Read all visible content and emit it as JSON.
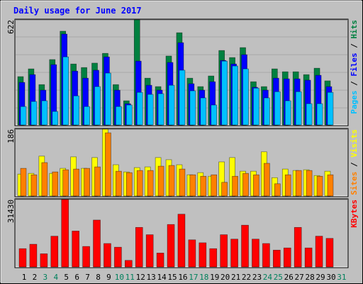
{
  "chart_data": [
    {
      "type": "bar",
      "title": "Daily usage for June 2017",
      "ylim": [
        0,
        622
      ],
      "yticks": [
        622
      ],
      "legend_separator": " / ",
      "series": [
        {
          "name": "Hits",
          "color": "#008040",
          "values": [
            286,
            332,
            239,
            387,
            555,
            361,
            340,
            366,
            424,
            239,
            143,
            622,
            277,
            227,
            408,
            546,
            277,
            227,
            290,
            441,
            399,
            458,
            256,
            227,
            332,
            315,
            315,
            298,
            336,
            261,
            0
          ]
        },
        {
          "name": "Files",
          "color": "#0000ff",
          "values": [
            252,
            298,
            206,
            357,
            538,
            319,
            277,
            324,
            403,
            206,
            126,
            378,
            235,
            206,
            370,
            487,
            244,
            206,
            256,
            382,
            361,
            416,
            223,
            206,
            277,
            273,
            273,
            265,
            294,
            227,
            0
          ]
        },
        {
          "name": "Pages",
          "color": "#00c0ff",
          "values": [
            109,
            139,
            143,
            80,
            403,
            172,
            109,
            227,
            307,
            109,
            118,
            193,
            181,
            185,
            235,
            324,
            202,
            160,
            118,
            378,
            349,
            332,
            218,
            160,
            197,
            143,
            197,
            126,
            126,
            193,
            0
          ]
        }
      ]
    },
    {
      "type": "bar",
      "ylim": [
        0,
        186
      ],
      "yticks": [
        186
      ],
      "legend_separator": " / ",
      "series": [
        {
          "name": "Visits",
          "color": "#ffff00",
          "values": [
            61,
            63,
            111,
            63,
            77,
            109,
            77,
            107,
            186,
            87,
            67,
            79,
            81,
            107,
            101,
            87,
            59,
            65,
            55,
            95,
            107,
            69,
            69,
            123,
            51,
            75,
            71,
            73,
            57,
            69,
            0
          ]
        },
        {
          "name": "Sites",
          "color": "#ff8000",
          "values": [
            77,
            59,
            93,
            67,
            73,
            75,
            77,
            81,
            176,
            69,
            65,
            71,
            71,
            83,
            85,
            75,
            59,
            55,
            59,
            38,
            55,
            63,
            59,
            91,
            34,
            59,
            71,
            71,
            55,
            59,
            0
          ]
        }
      ]
    },
    {
      "type": "bar",
      "ylim": [
        0,
        31430
      ],
      "yticks": [
        31430
      ],
      "categories": [
        "1",
        "2",
        "3",
        "4",
        "5",
        "6",
        "7",
        "8",
        "9",
        "10",
        "11",
        "12",
        "13",
        "14",
        "15",
        "16",
        "17",
        "18",
        "19",
        "20",
        "21",
        "22",
        "23",
        "24",
        "25",
        "26",
        "27",
        "28",
        "29",
        "30",
        "31"
      ],
      "category_colors": [
        "#000000",
        "#000000",
        "#00805c",
        "#00805c",
        "#000000",
        "#000000",
        "#000000",
        "#000000",
        "#000000",
        "#00805c",
        "#00805c",
        "#000000",
        "#000000",
        "#000000",
        "#000000",
        "#000000",
        "#00805c",
        "#00805c",
        "#000000",
        "#000000",
        "#000000",
        "#000000",
        "#000000",
        "#00805c",
        "#00805c",
        "#000000",
        "#000000",
        "#000000",
        "#000000",
        "#000000",
        "#00805c"
      ],
      "series": [
        {
          "name": "KBytes",
          "color": "#ff0000",
          "values": [
            8540,
            10590,
            6150,
            14350,
            31430,
            16740,
            9570,
            21860,
            10930,
            9220,
            3070,
            18450,
            15030,
            6490,
            19810,
            24600,
            12640,
            11270,
            8540,
            15030,
            12980,
            19470,
            12980,
            10930,
            7860,
            8880,
            18450,
            8880,
            14350,
            13320,
            0
          ]
        }
      ]
    }
  ]
}
